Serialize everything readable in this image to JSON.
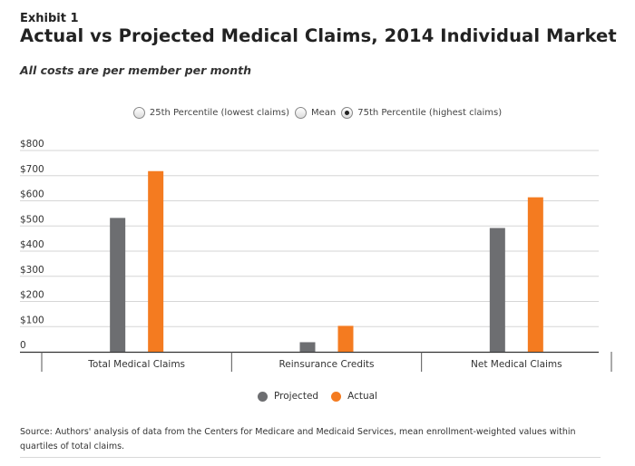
{
  "header": {
    "exhibit": "Exhibit 1",
    "title": "Actual vs Projected Medical Claims, 2014 Individual Market",
    "subtitle": "All costs are per member per month"
  },
  "selector": {
    "options": [
      {
        "label": "25th Percentile (lowest claims)",
        "selected": false
      },
      {
        "label": "Mean",
        "selected": false
      },
      {
        "label": "75th Percentile (highest claims)",
        "selected": true
      }
    ]
  },
  "chart_data": {
    "type": "bar",
    "categories": [
      "Total Medical Claims",
      "Reinsurance Credits",
      "Net Medical Claims"
    ],
    "series": [
      {
        "name": "Projected",
        "color": "#6d6e71",
        "values": [
          532,
          38,
          492
        ]
      },
      {
        "name": "Actual",
        "color": "#f47b20",
        "values": [
          718,
          103,
          614
        ]
      }
    ],
    "yticks": [
      "0",
      "$100",
      "$200",
      "$300",
      "$400",
      "$500",
      "$600",
      "$700",
      "$800"
    ],
    "ylim": [
      0,
      800
    ],
    "grid": true,
    "legend_position": "bottom-center"
  },
  "legend": {
    "items": [
      {
        "label": "Projected",
        "color": "#6d6e71"
      },
      {
        "label": "Actual",
        "color": "#f47b20"
      }
    ]
  },
  "source": "Source: Authors' analysis of data from the Centers for Medicare and Medicaid Services, mean enrollment-weighted values within quartiles of total claims."
}
